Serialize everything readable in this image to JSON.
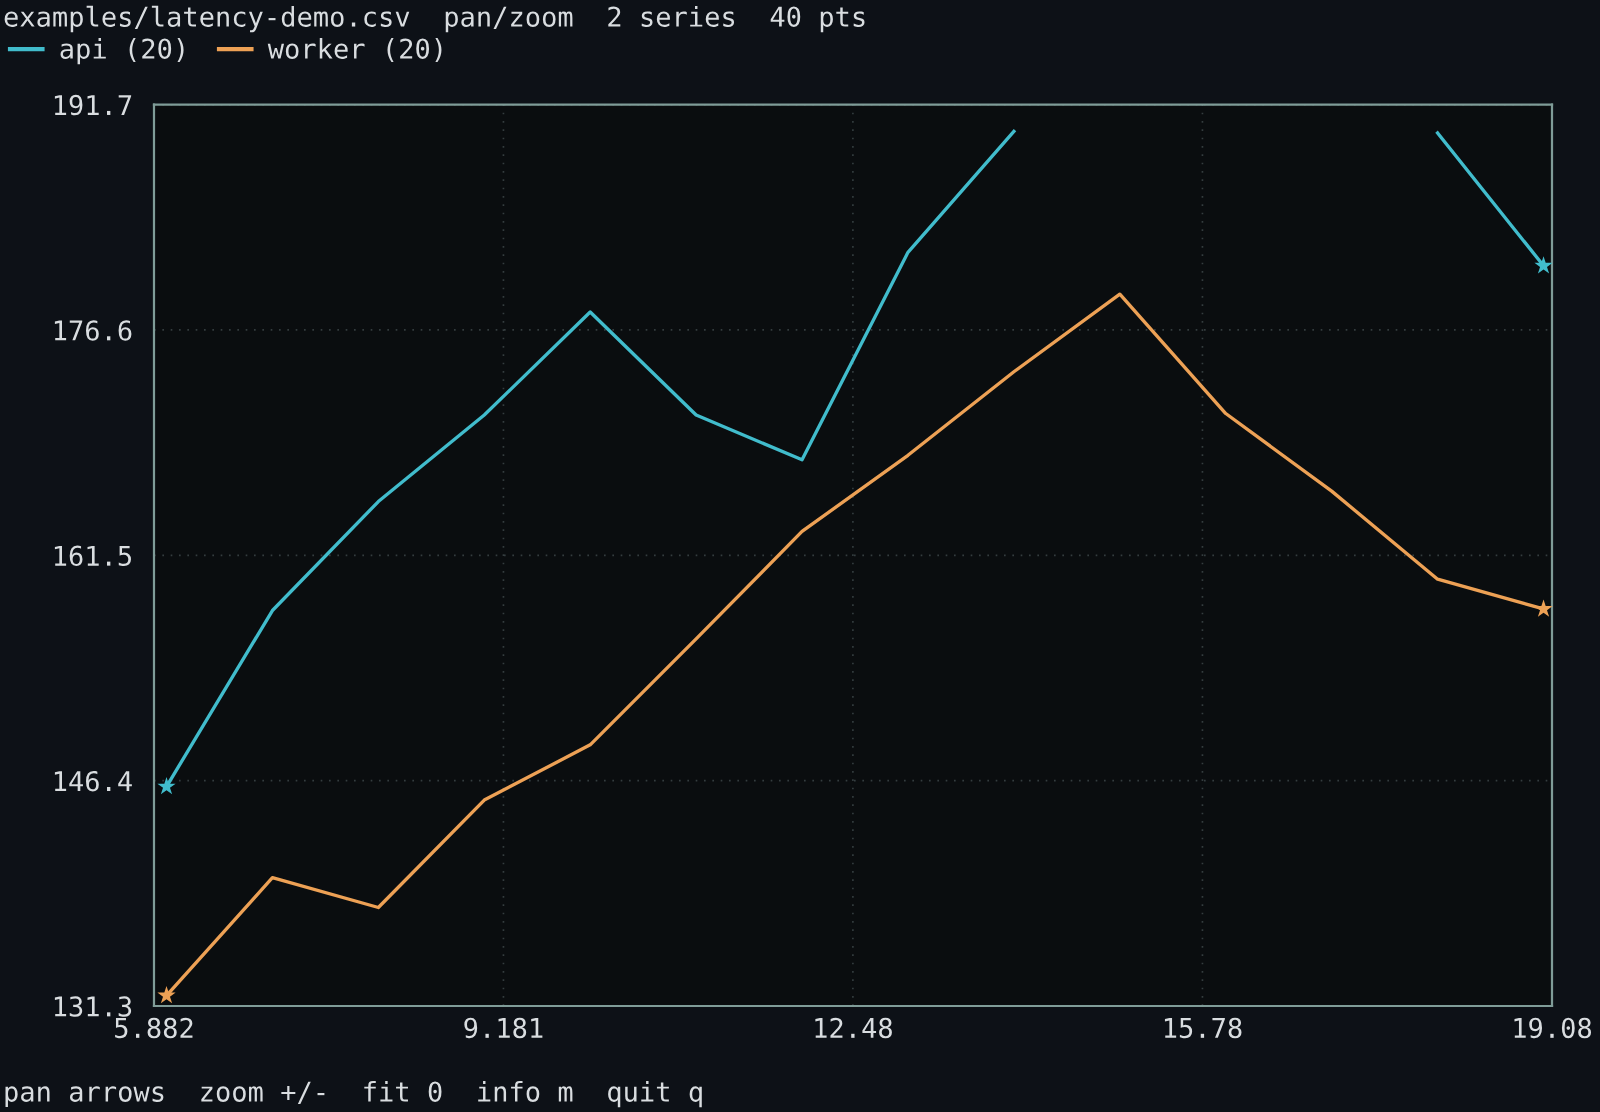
{
  "chart_data": {
    "type": "line",
    "title": "examples/latency-demo.csv  pan/zoom  2 series  40 pts",
    "annotations": [
      "pan arrows  zoom +/-  fit 0  info m  quit q"
    ],
    "xlim": [
      5.882,
      19.08
    ],
    "xticks": [
      5.882,
      9.181,
      12.48,
      15.78,
      19.08
    ],
    "ylim": [
      131.3,
      191.7
    ],
    "yticks": [
      131.3,
      146.4,
      161.5,
      176.6,
      191.7
    ],
    "grid": true,
    "legend": "top left",
    "line_style": "solid",
    "x": [
      6,
      7,
      8,
      9,
      10,
      11,
      12,
      13,
      14,
      15,
      16,
      17,
      18,
      19
    ],
    "series": [
      {
        "name": "api (20)",
        "color": "#41bccc",
        "values": [
          146.0,
          157.8,
          165.1,
          170.9,
          177.8,
          170.9,
          167.9,
          181.8,
          189.9,
          null,
          null,
          null,
          189.8,
          180.9
        ]
      },
      {
        "name": "worker (20)",
        "color": "#eda155",
        "values": [
          132.0,
          139.9,
          137.9,
          145.1,
          148.8,
          155.9,
          163.1,
          168.2,
          173.8,
          179.0,
          171.0,
          165.8,
          159.9,
          157.9
        ]
      },
      {
        "type": "scatter",
        "color": "#41bccc",
        "marker": "star",
        "values": [
          146.0,
          null,
          null,
          null,
          null,
          null,
          null,
          null,
          null,
          null,
          null,
          null,
          null,
          180.9
        ]
      },
      {
        "type": "scatter",
        "color": "#eda155",
        "marker": "star",
        "values": [
          132.0,
          null,
          null,
          null,
          null,
          null,
          null,
          null,
          null,
          null,
          null,
          null,
          null,
          157.9
        ]
      }
    ]
  }
}
